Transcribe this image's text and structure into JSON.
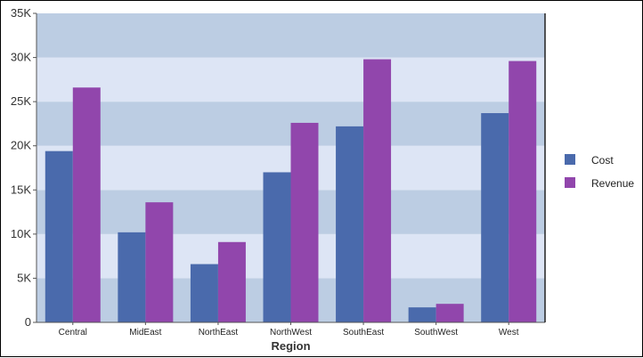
{
  "chart_data": {
    "type": "bar",
    "title": "",
    "xlabel": "Region",
    "ylabel": "",
    "categories": [
      "Central",
      "MidEast",
      "NorthEast",
      "NorthWest",
      "SouthEast",
      "SouthWest",
      "West"
    ],
    "series": [
      {
        "name": "Cost",
        "color": "#4a6aac",
        "values": [
          19400,
          10200,
          6600,
          17000,
          22200,
          1700,
          23700
        ]
      },
      {
        "name": "Revenue",
        "color": "#9146ac",
        "values": [
          26600,
          13600,
          9100,
          22600,
          29800,
          2100,
          29600
        ]
      }
    ],
    "ylim": [
      0,
      35000
    ],
    "yticks": [
      0,
      5000,
      10000,
      15000,
      20000,
      25000,
      30000,
      35000
    ],
    "ytick_labels": [
      "0",
      "5K",
      "10K",
      "15K",
      "20K",
      "25K",
      "30K",
      "35K"
    ],
    "grid": "alternating horizontal bands",
    "band_colors": [
      "#bccde3",
      "#dde5f5"
    ],
    "legend": "right"
  }
}
